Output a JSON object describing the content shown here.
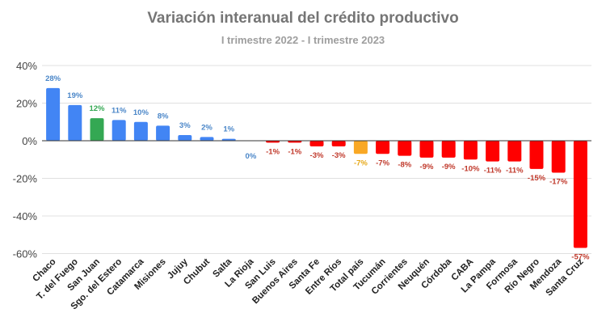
{
  "chart_data": {
    "type": "bar",
    "title": "Variación interanual del crédito productivo",
    "subtitle": "I trimestre 2022 - I trimestre 2023",
    "xlabel": "",
    "ylabel": "",
    "ylim": [
      -60,
      40
    ],
    "yticks": [
      "40%",
      "20%",
      "0%",
      "-20%",
      "-40%",
      "-60%"
    ],
    "ytick_values": [
      40,
      20,
      0,
      -20,
      -40,
      -60
    ],
    "grid": true,
    "legend": "none",
    "categories": [
      "Chaco",
      "T. del Fuego",
      "San Juan",
      "Sgo. del Estero",
      "Catamarca",
      "Misiones",
      "Jujuy",
      "Chubut",
      "Salta",
      "La Rioja",
      "San Luis",
      "Buenos Aires",
      "Santa Fe",
      "Entre Ríos",
      "Total país",
      "Tucumán",
      "Corrientes",
      "Neuquén",
      "Córdoba",
      "CABA",
      "La Pampa",
      "Formosa",
      "Río Negro",
      "Mendoza",
      "Santa Cruz"
    ],
    "values": [
      28,
      19,
      12,
      11,
      10,
      8,
      3,
      2,
      1,
      0,
      -1,
      -1,
      -3,
      -3,
      -7,
      -7,
      -8,
      -9,
      -9,
      -10,
      -11,
      -11,
      -15,
      -17,
      -57
    ],
    "data_labels": [
      "28%",
      "19%",
      "12%",
      "11%",
      "10%",
      "8%",
      "3%",
      "2%",
      "1%",
      "0%",
      "-1%",
      "-1%",
      "-3%",
      "-3%",
      "-7%",
      "-7%",
      "-8%",
      "-9%",
      "-9%",
      "-10%",
      "-11%",
      "-11%",
      "-15%",
      "-17%",
      "-57%"
    ],
    "colors": {
      "positive": "#4285f4",
      "highlight_province": "#34a853",
      "total": "#f9a825",
      "negative": "#ff0000",
      "positive_label": "#4a86c8",
      "negative_label": "#c0392b",
      "total_label": "#e6a817"
    },
    "highlight_categories": {
      "San Juan": "highlight_province",
      "Total país": "total"
    }
  }
}
